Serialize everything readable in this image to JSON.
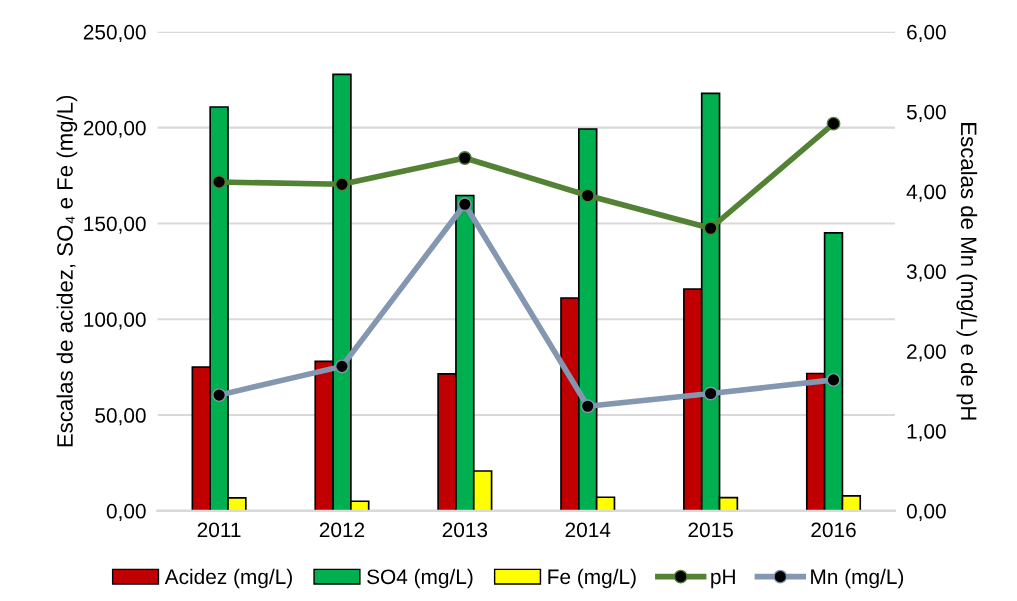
{
  "chart_data": {
    "type": "bar",
    "ylabel": "Escalas de acidez, SO₄ e Fe (mg/L)",
    "y2label": "Escalas de Mn (mg/L) e de pH",
    "categories": [
      "2011",
      "2012",
      "2013",
      "2014",
      "2015",
      "2016"
    ],
    "series": [
      {
        "name": "Acidez (mg/L)",
        "color": "#c00000",
        "values": [
          75.0,
          78.0,
          71.5,
          111.1,
          115.8,
          71.7
        ]
      },
      {
        "name": "SO4 (mg/L)",
        "color": "#00b050",
        "values": [
          210.8,
          227.8,
          164.6,
          199.3,
          217.9,
          145.1
        ]
      },
      {
        "name": "Fe (mg/L)",
        "color": "#ffff00",
        "values": [
          6.8,
          5.0,
          20.8,
          7.1,
          6.9,
          7.8
        ]
      },
      {
        "name": "pH",
        "type": "line",
        "axis": "y2",
        "color": "#548235",
        "values": [
          4.12,
          4.09,
          4.42,
          3.95,
          3.54,
          4.85
        ]
      },
      {
        "name": "Mn (mg/L)",
        "type": "line",
        "axis": "y2",
        "color": "#8497b0",
        "values": [
          1.45,
          1.81,
          3.84,
          1.31,
          1.47,
          1.64
        ]
      }
    ],
    "ylim": [
      0,
      250
    ],
    "yticks": [
      {
        "value": 0,
        "label": "0,00"
      },
      {
        "value": 50,
        "label": "50,00"
      },
      {
        "value": 100,
        "label": "100,00"
      },
      {
        "value": 150,
        "label": "150,00"
      },
      {
        "value": 200,
        "label": "200,00"
      },
      {
        "value": 250,
        "label": "250,00"
      }
    ],
    "y2lim": [
      0,
      6
    ],
    "y2ticks": [
      {
        "value": 0,
        "label": "0,00"
      },
      {
        "value": 1,
        "label": "1,00"
      },
      {
        "value": 2,
        "label": "2,00"
      },
      {
        "value": 3,
        "label": "3,00"
      },
      {
        "value": 4,
        "label": "4,00"
      },
      {
        "value": 5,
        "label": "5,00"
      },
      {
        "value": 6,
        "label": "6,00"
      }
    ],
    "grid": "y",
    "legend": "bottom",
    "marker": "circle",
    "line_style": "solid"
  }
}
